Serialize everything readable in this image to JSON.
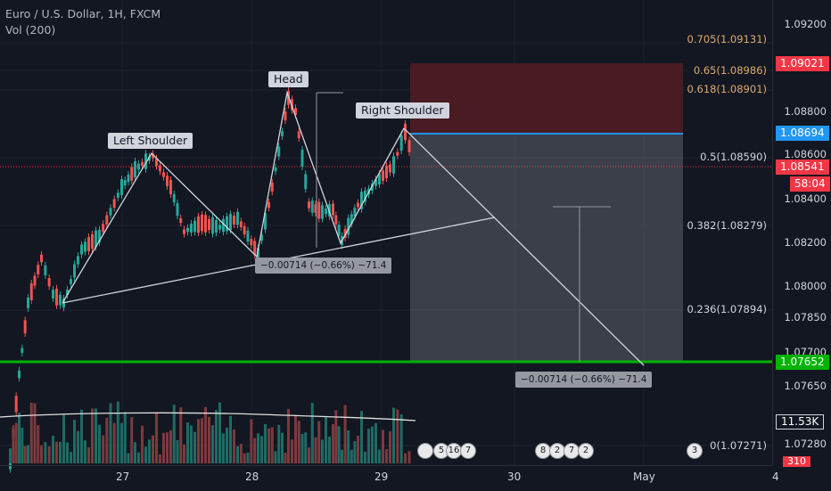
{
  "header": {
    "symbol": "Euro / U.S. Dollar, 1H, FXCM",
    "volume": "Vol (200)"
  },
  "price_axis": {
    "ticks": [
      "1.09200",
      "1.08800",
      "1.08600",
      "1.08400",
      "1.08200",
      "1.08000",
      "1.07850",
      "1.07700",
      "1.07650",
      "1.07280"
    ],
    "tags": [
      {
        "text": "1.09021",
        "color": "#f23645"
      },
      {
        "text": "1.08694",
        "color": "#2196f3"
      },
      {
        "text": "1.08541",
        "color": "#f23645"
      },
      {
        "text": "58:04",
        "color": "#f23645"
      },
      {
        "text": "1.07652",
        "color": "#00b300"
      },
      {
        "text": "11.53K",
        "color": "#131722"
      },
      {
        "text": "310",
        "color": "#f23645"
      }
    ]
  },
  "time_axis": {
    "ticks": [
      "27",
      "28",
      "29",
      "30",
      "May",
      "4"
    ]
  },
  "fib_levels": [
    "0.705(1.09131)",
    "0.65(1.08986)",
    "0.618(1.08901)",
    "0.5(1.08590)",
    "0.382(1.08279)",
    "0.236(1.07894)",
    "0(1.07271)"
  ],
  "pattern_labels": {
    "left": "Left Shoulder",
    "head": "Head",
    "right": "Right Shoulder"
  },
  "measure_labels": [
    "−0.00714 (−0.66%) −71.4",
    "−0.00714 (−0.66%) −71.4"
  ],
  "event_badges": [
    "5",
    "16",
    "7",
    "8",
    "2",
    "7",
    "2",
    "3"
  ],
  "colors": {
    "up": "#26a69a",
    "down": "#ef5350",
    "background": "#131722"
  }
}
